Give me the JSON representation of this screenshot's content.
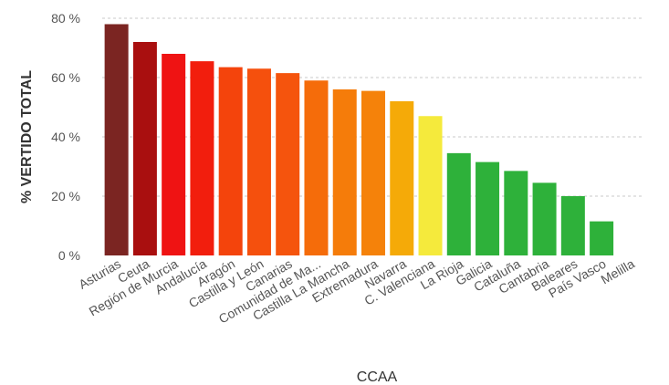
{
  "chart_data": {
    "type": "bar",
    "xlabel": "CCAA",
    "ylabel": "% VERTIDO TOTAL",
    "ylim": [
      0,
      80
    ],
    "yticks": [
      0,
      20,
      40,
      60,
      80
    ],
    "ytick_suffix": " %",
    "grid": true,
    "categories": [
      "Asturias",
      "Ceuta",
      "Región de Murcia",
      "Andalucía",
      "Aragón",
      "Castilla y León",
      "Canarias",
      "Comunidad de Ma...",
      "Castilla La Mancha",
      "Extremadura",
      "Navarra",
      "C. Valenciana",
      "La Rioja",
      "Galicia",
      "Cataluña",
      "Cantabria",
      "Baleares",
      "País Vasco",
      "Melilla"
    ],
    "values": [
      78,
      72,
      68,
      65.5,
      63.5,
      63,
      61.5,
      59,
      56,
      55.5,
      52,
      47,
      34.5,
      31.5,
      28.5,
      24.5,
      20,
      11.5,
      0
    ],
    "colors": [
      "#7b2522",
      "#a90f0f",
      "#ef1313",
      "#f21e0d",
      "#f4440c",
      "#f5500d",
      "#f5540d",
      "#f56c0a",
      "#f57c0a",
      "#f5820a",
      "#f5aa08",
      "#f5ea3c",
      "#2eb13a",
      "#2eb13a",
      "#2eb13a",
      "#2eb13a",
      "#2eb13a",
      "#2eb13a",
      "#2eb13a"
    ]
  }
}
